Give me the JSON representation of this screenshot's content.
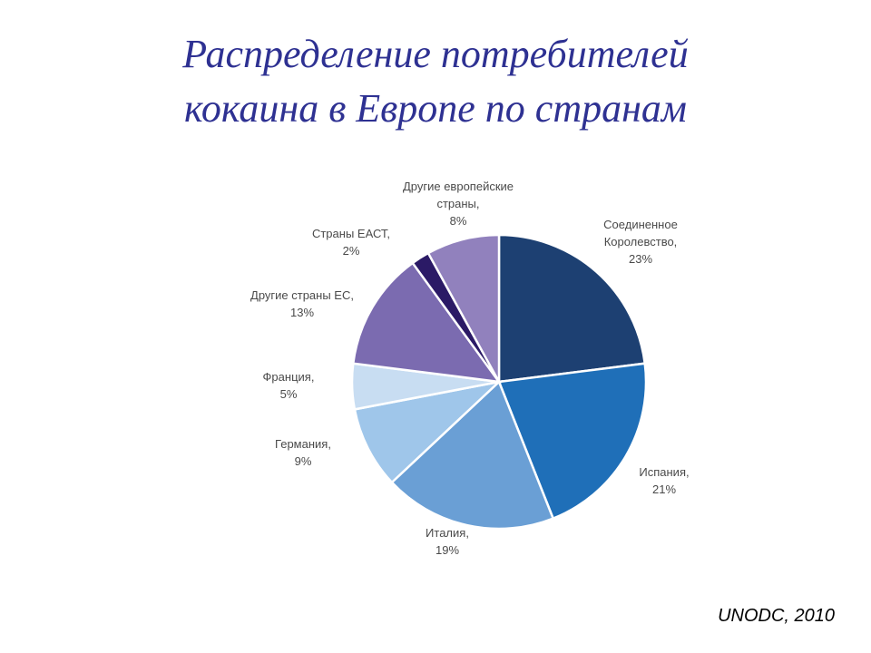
{
  "title": {
    "line1": "Распределение потребителей",
    "line2": "кокаина в Европе по странам"
  },
  "source": "UNODC, 2010",
  "chart_data": {
    "type": "pie",
    "title": "Распределение потребителей кокаина в Европе по странам",
    "slices": [
      {
        "label": [
          "Соединенное",
          "Королевство,",
          "23%"
        ],
        "name": "Соединенное Королевство",
        "value": 23,
        "color": "#1d4072"
      },
      {
        "label": [
          "Испания,",
          "21%"
        ],
        "name": "Испания",
        "value": 21,
        "color": "#1f6fb8"
      },
      {
        "label": [
          "Италия,",
          "19%"
        ],
        "name": "Италия",
        "value": 19,
        "color": "#6a9fd5"
      },
      {
        "label": [
          "Германия,",
          "9%"
        ],
        "name": "Германия",
        "value": 9,
        "color": "#9fc6ea"
      },
      {
        "label": [
          "Франция,",
          "5%"
        ],
        "name": "Франция",
        "value": 5,
        "color": "#c8ddf2"
      },
      {
        "label": [
          "Другие страны ЕС,",
          "13%"
        ],
        "name": "Другие страны ЕС",
        "value": 13,
        "color": "#7b6bb0"
      },
      {
        "label": [
          "Страны ЕАСТ,",
          "2%"
        ],
        "name": "Страны ЕАСТ",
        "value": 2,
        "color": "#2b1a66"
      },
      {
        "label": [
          "Другие европейские",
          "страны,",
          "8%"
        ],
        "name": "Другие европейские страны",
        "value": 8,
        "color": "#9181bd"
      }
    ]
  }
}
